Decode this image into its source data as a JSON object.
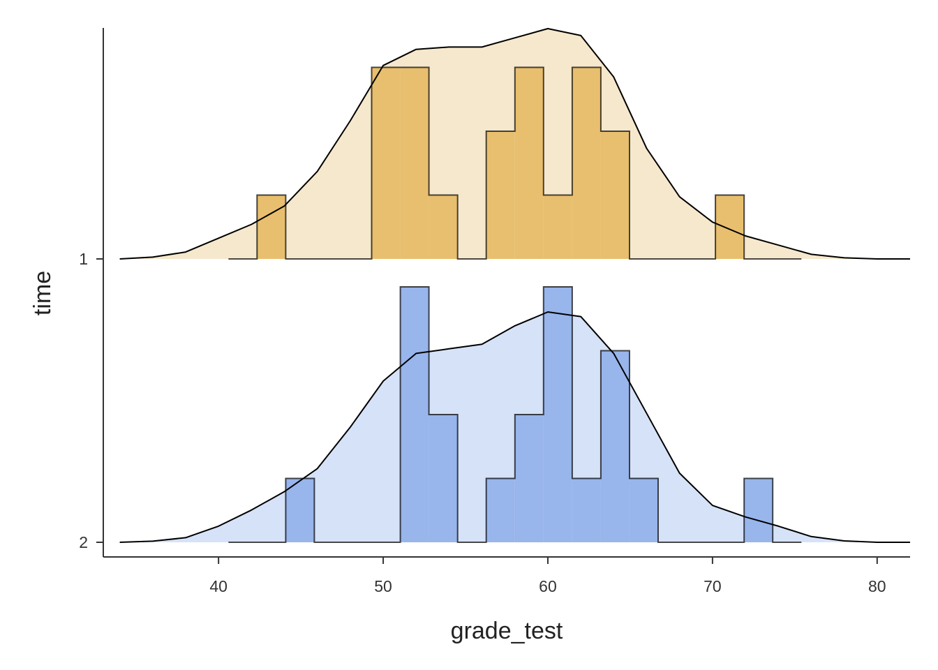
{
  "chart_data": {
    "type": "ridgeline",
    "xlabel": "grade_test",
    "ylabel": "time",
    "xlim": [
      33,
      82
    ],
    "x_ticks": [
      "40",
      "50",
      "60",
      "70",
      "80"
    ],
    "grid": false,
    "bin_width": 1.74,
    "series": [
      {
        "name": "1",
        "fill": "#E8BF6E",
        "density_fill": "#F6E8CC",
        "histogram": [
          {
            "start": 40.6,
            "count": 0
          },
          {
            "start": 42.34,
            "count": 1
          },
          {
            "start": 44.08,
            "count": 0
          },
          {
            "start": 45.82,
            "count": 0
          },
          {
            "start": 47.56,
            "count": 0
          },
          {
            "start": 49.3,
            "count": 3
          },
          {
            "start": 51.04,
            "count": 3
          },
          {
            "start": 52.78,
            "count": 1
          },
          {
            "start": 54.52,
            "count": 0
          },
          {
            "start": 56.26,
            "count": 2
          },
          {
            "start": 58.0,
            "count": 3
          },
          {
            "start": 59.74,
            "count": 1
          },
          {
            "start": 61.48,
            "count": 3
          },
          {
            "start": 63.22,
            "count": 2
          },
          {
            "start": 64.96,
            "count": 0
          },
          {
            "start": 66.7,
            "count": 0
          },
          {
            "start": 68.44,
            "count": 0
          },
          {
            "start": 70.18,
            "count": 1
          },
          {
            "start": 71.92,
            "count": 0
          },
          {
            "start": 73.66,
            "count": 0
          }
        ],
        "density": [
          [
            34,
            0.0
          ],
          [
            36,
            0.008
          ],
          [
            38,
            0.03
          ],
          [
            40,
            0.09
          ],
          [
            42,
            0.15
          ],
          [
            44,
            0.23
          ],
          [
            46,
            0.38
          ],
          [
            48,
            0.6
          ],
          [
            50,
            0.84
          ],
          [
            52,
            0.91
          ],
          [
            54,
            0.92
          ],
          [
            56,
            0.92
          ],
          [
            58,
            0.96
          ],
          [
            60,
            1.0
          ],
          [
            62,
            0.97
          ],
          [
            64,
            0.79
          ],
          [
            66,
            0.48
          ],
          [
            68,
            0.27
          ],
          [
            70,
            0.16
          ],
          [
            72,
            0.1
          ],
          [
            74,
            0.06
          ],
          [
            76,
            0.02
          ],
          [
            78,
            0.005
          ],
          [
            80,
            0.0
          ],
          [
            82,
            0.0
          ]
        ]
      },
      {
        "name": "2",
        "fill": "#98B5EC",
        "density_fill": "#D6E2F7",
        "histogram": [
          {
            "start": 40.6,
            "count": 0
          },
          {
            "start": 42.34,
            "count": 0
          },
          {
            "start": 44.08,
            "count": 1
          },
          {
            "start": 45.82,
            "count": 0
          },
          {
            "start": 47.56,
            "count": 0
          },
          {
            "start": 49.3,
            "count": 0
          },
          {
            "start": 51.04,
            "count": 4
          },
          {
            "start": 52.78,
            "count": 2
          },
          {
            "start": 54.52,
            "count": 0
          },
          {
            "start": 56.26,
            "count": 1
          },
          {
            "start": 58.0,
            "count": 2
          },
          {
            "start": 59.74,
            "count": 4
          },
          {
            "start": 61.48,
            "count": 1
          },
          {
            "start": 63.22,
            "count": 3
          },
          {
            "start": 64.96,
            "count": 1
          },
          {
            "start": 66.7,
            "count": 0
          },
          {
            "start": 68.44,
            "count": 0
          },
          {
            "start": 70.18,
            "count": 0
          },
          {
            "start": 71.92,
            "count": 1
          },
          {
            "start": 73.66,
            "count": 0
          }
        ],
        "density": [
          [
            34,
            0.0
          ],
          [
            36,
            0.005
          ],
          [
            38,
            0.02
          ],
          [
            40,
            0.07
          ],
          [
            42,
            0.14
          ],
          [
            44,
            0.22
          ],
          [
            46,
            0.32
          ],
          [
            48,
            0.5
          ],
          [
            50,
            0.7
          ],
          [
            52,
            0.82
          ],
          [
            54,
            0.84
          ],
          [
            56,
            0.86
          ],
          [
            58,
            0.94
          ],
          [
            60,
            1.0
          ],
          [
            62,
            0.98
          ],
          [
            64,
            0.82
          ],
          [
            66,
            0.56
          ],
          [
            68,
            0.3
          ],
          [
            70,
            0.16
          ],
          [
            72,
            0.11
          ],
          [
            74,
            0.07
          ],
          [
            76,
            0.025
          ],
          [
            78,
            0.006
          ],
          [
            80,
            0.0
          ],
          [
            82,
            0.0
          ]
        ]
      }
    ]
  }
}
